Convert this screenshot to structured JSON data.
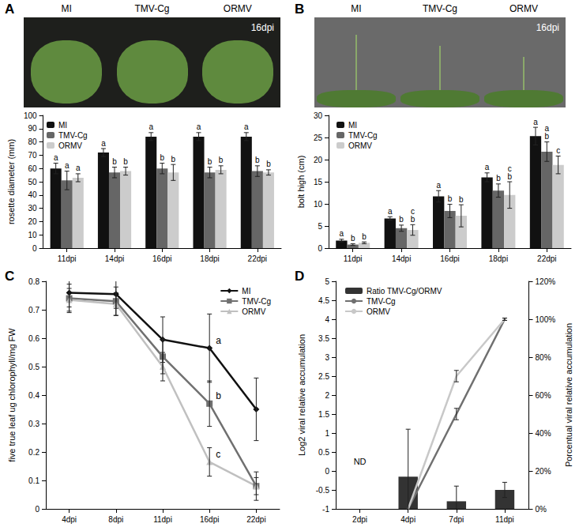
{
  "chart_data": [
    {
      "panel": "A",
      "type": "bar",
      "photo": {
        "labels": [
          "MI",
          "TMV-Cg",
          "ORMV"
        ],
        "annotation": "16dpi"
      },
      "y_label": "rosette diameter (mm)",
      "categories": [
        "11dpi",
        "14dpi",
        "16dpi",
        "18dpi",
        "22dpi"
      ],
      "series": [
        {
          "name": "MI",
          "color": "#111111",
          "values": [
            60,
            72,
            84,
            84,
            84
          ],
          "errors": [
            4,
            3,
            3,
            3,
            3
          ],
          "letters": [
            "a",
            "a",
            "a",
            "a",
            "a"
          ]
        },
        {
          "name": "TMV-Cg",
          "color": "#666666",
          "values": [
            51,
            57,
            60,
            57,
            58
          ],
          "errors": [
            7,
            4,
            4,
            4,
            4
          ],
          "letters": [
            "a",
            "b",
            "b",
            "b",
            "b"
          ]
        },
        {
          "name": "ORMV",
          "color": "#cccccc",
          "values": [
            53,
            58,
            57,
            59,
            57
          ],
          "errors": [
            3,
            3,
            6,
            3,
            2
          ],
          "letters": [
            "a",
            "b",
            "b",
            "b",
            "b"
          ]
        }
      ],
      "ylim": [
        0,
        100
      ],
      "yticks": [
        0,
        10,
        20,
        30,
        40,
        50,
        60,
        70,
        80,
        90,
        100
      ],
      "legend": "top-left",
      "grid": false
    },
    {
      "panel": "B",
      "type": "bar",
      "photo": {
        "labels": [
          "MI",
          "TMV-Cg",
          "ORMV"
        ],
        "annotation": "16dpi"
      },
      "y_label": "bolt high (cm)",
      "categories": [
        "11dpi",
        "14dpi",
        "16dpi",
        "18dpi",
        "22dpi"
      ],
      "series": [
        {
          "name": "MI",
          "color": "#111111",
          "values": [
            1.7,
            6.7,
            11.7,
            16,
            25.3
          ],
          "errors": [
            0.3,
            0.4,
            1.3,
            1,
            2
          ],
          "letters": [
            "a",
            "a",
            "a",
            "a",
            "a"
          ]
        },
        {
          "name": "TMV-Cg",
          "color": "#666666",
          "values": [
            0.8,
            4.5,
            8.4,
            13,
            21.8
          ],
          "errors": [
            0.2,
            0.7,
            1.5,
            1.5,
            2.2
          ],
          "letters": [
            "b",
            "b",
            "b",
            "b",
            "a\nb"
          ]
        },
        {
          "name": "ORMV",
          "color": "#cccccc",
          "values": [
            1.2,
            4.1,
            7.3,
            12,
            18.8
          ],
          "errors": [
            0.2,
            1.2,
            2.5,
            3,
            2
          ],
          "letters": [
            "b",
            "c\nb",
            "b",
            "c\nb",
            "c"
          ]
        }
      ],
      "ylim": [
        0,
        30
      ],
      "yticks": [
        0,
        5,
        10,
        15,
        20,
        25,
        30
      ],
      "legend": "top-left",
      "grid": false
    },
    {
      "panel": "C",
      "type": "line",
      "y_label": "five true leaf ug chlorophyll/mg FW",
      "categories": [
        "4dpi",
        "8dpi",
        "11dpi",
        "16dpi",
        "22dpi"
      ],
      "series": [
        {
          "name": "MI",
          "color": "#111111",
          "marker": "diamond",
          "values": [
            0.76,
            0.755,
            0.595,
            0.565,
            0.35
          ],
          "errors": [
            0.05,
            0.05,
            0.08,
            0.12,
            0.11
          ],
          "letters": [
            null,
            null,
            null,
            "a",
            null
          ]
        },
        {
          "name": "TMV-Cg",
          "color": "#707070",
          "marker": "square",
          "values": [
            0.74,
            0.73,
            0.535,
            0.37,
            0.08
          ],
          "errors": [
            0.05,
            0.05,
            0.06,
            0.08,
            0.05
          ],
          "letters": [
            null,
            null,
            null,
            "b",
            null
          ]
        },
        {
          "name": "ORMV",
          "color": "#c0c0c0",
          "marker": "triangle",
          "values": [
            0.735,
            0.72,
            0.5,
            0.165,
            0.08
          ],
          "errors": [
            0.04,
            0.04,
            0.05,
            0.05,
            0.03
          ],
          "letters": [
            null,
            null,
            null,
            "c",
            null
          ]
        }
      ],
      "ylim": [
        0,
        0.8
      ],
      "yticks": [
        0,
        0.1,
        0.2,
        0.3,
        0.4,
        0.5,
        0.6,
        0.7,
        0.8
      ],
      "legend": "top-right",
      "grid": false
    },
    {
      "panel": "D",
      "type": "bar",
      "y_label": "Log2 viral relative accumulation",
      "y2_label": "Porcentual viral relative accumulation",
      "annotations": [
        "ND"
      ],
      "categories": [
        "2dpi",
        "4dpi",
        "7dpi",
        "11dpi"
      ],
      "series": [
        {
          "name": "Ratio TMV-Cg/ORMV",
          "type": "bar",
          "axis": "y2",
          "color": "#333333",
          "values": [
            null,
            17,
            4,
            10
          ],
          "errors": [
            null,
            25,
            8,
            4
          ]
        },
        {
          "name": "TMV-Cg",
          "type": "line",
          "marker": "none",
          "color": "#707070",
          "values": [
            null,
            -1,
            1.5,
            4
          ],
          "errors": [
            null,
            null,
            0.15,
            0.03
          ]
        },
        {
          "name": "ORMV",
          "type": "line",
          "marker": "none",
          "color": "#c8c8c8",
          "values": [
            null,
            -1,
            2.5,
            4
          ],
          "errors": [
            null,
            null,
            0.15,
            0.03
          ]
        }
      ],
      "ylim": [
        -1,
        5
      ],
      "yticks": [
        -1,
        -0.5,
        0,
        0.5,
        1,
        1.5,
        2,
        2.5,
        3,
        3.5,
        4,
        4.5,
        5
      ],
      "y2lim": [
        0,
        120
      ],
      "y2ticks": [
        {
          "value": 0,
          "label": "0%"
        },
        {
          "value": 20,
          "label": "20%"
        },
        {
          "value": 40,
          "label": "40%"
        },
        {
          "value": 60,
          "label": "60%"
        },
        {
          "value": 80,
          "label": "80%"
        },
        {
          "value": 100,
          "label": "100%"
        },
        {
          "value": 120,
          "label": "120%"
        }
      ],
      "legend": "top-left",
      "grid": false
    }
  ]
}
